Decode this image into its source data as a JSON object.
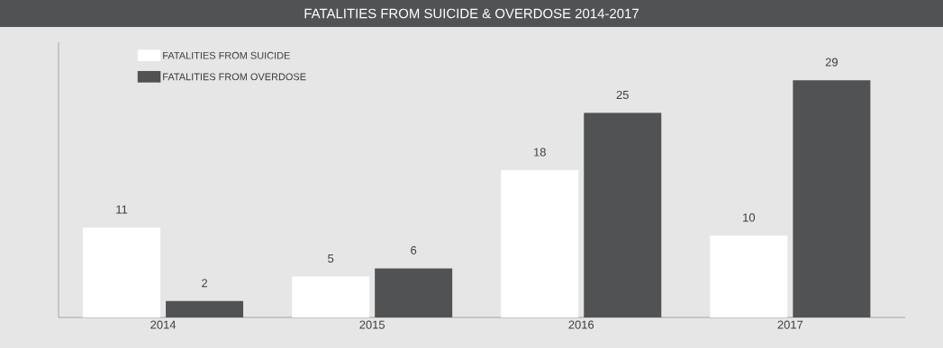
{
  "chart_data": {
    "type": "bar",
    "title": "FATALITIES FROM SUICIDE & OVERDOSE 2014-2017",
    "categories": [
      "2014",
      "2015",
      "2016",
      "2017"
    ],
    "series": [
      {
        "name": "FATALITIES FROM SUICIDE",
        "color": "#ffffff",
        "values": [
          11,
          5,
          18,
          10
        ]
      },
      {
        "name": "FATALITIES FROM OVERDOSE",
        "color": "#505254",
        "values": [
          2,
          6,
          25,
          29
        ]
      }
    ],
    "data_labels": true,
    "legend": "top left"
  }
}
